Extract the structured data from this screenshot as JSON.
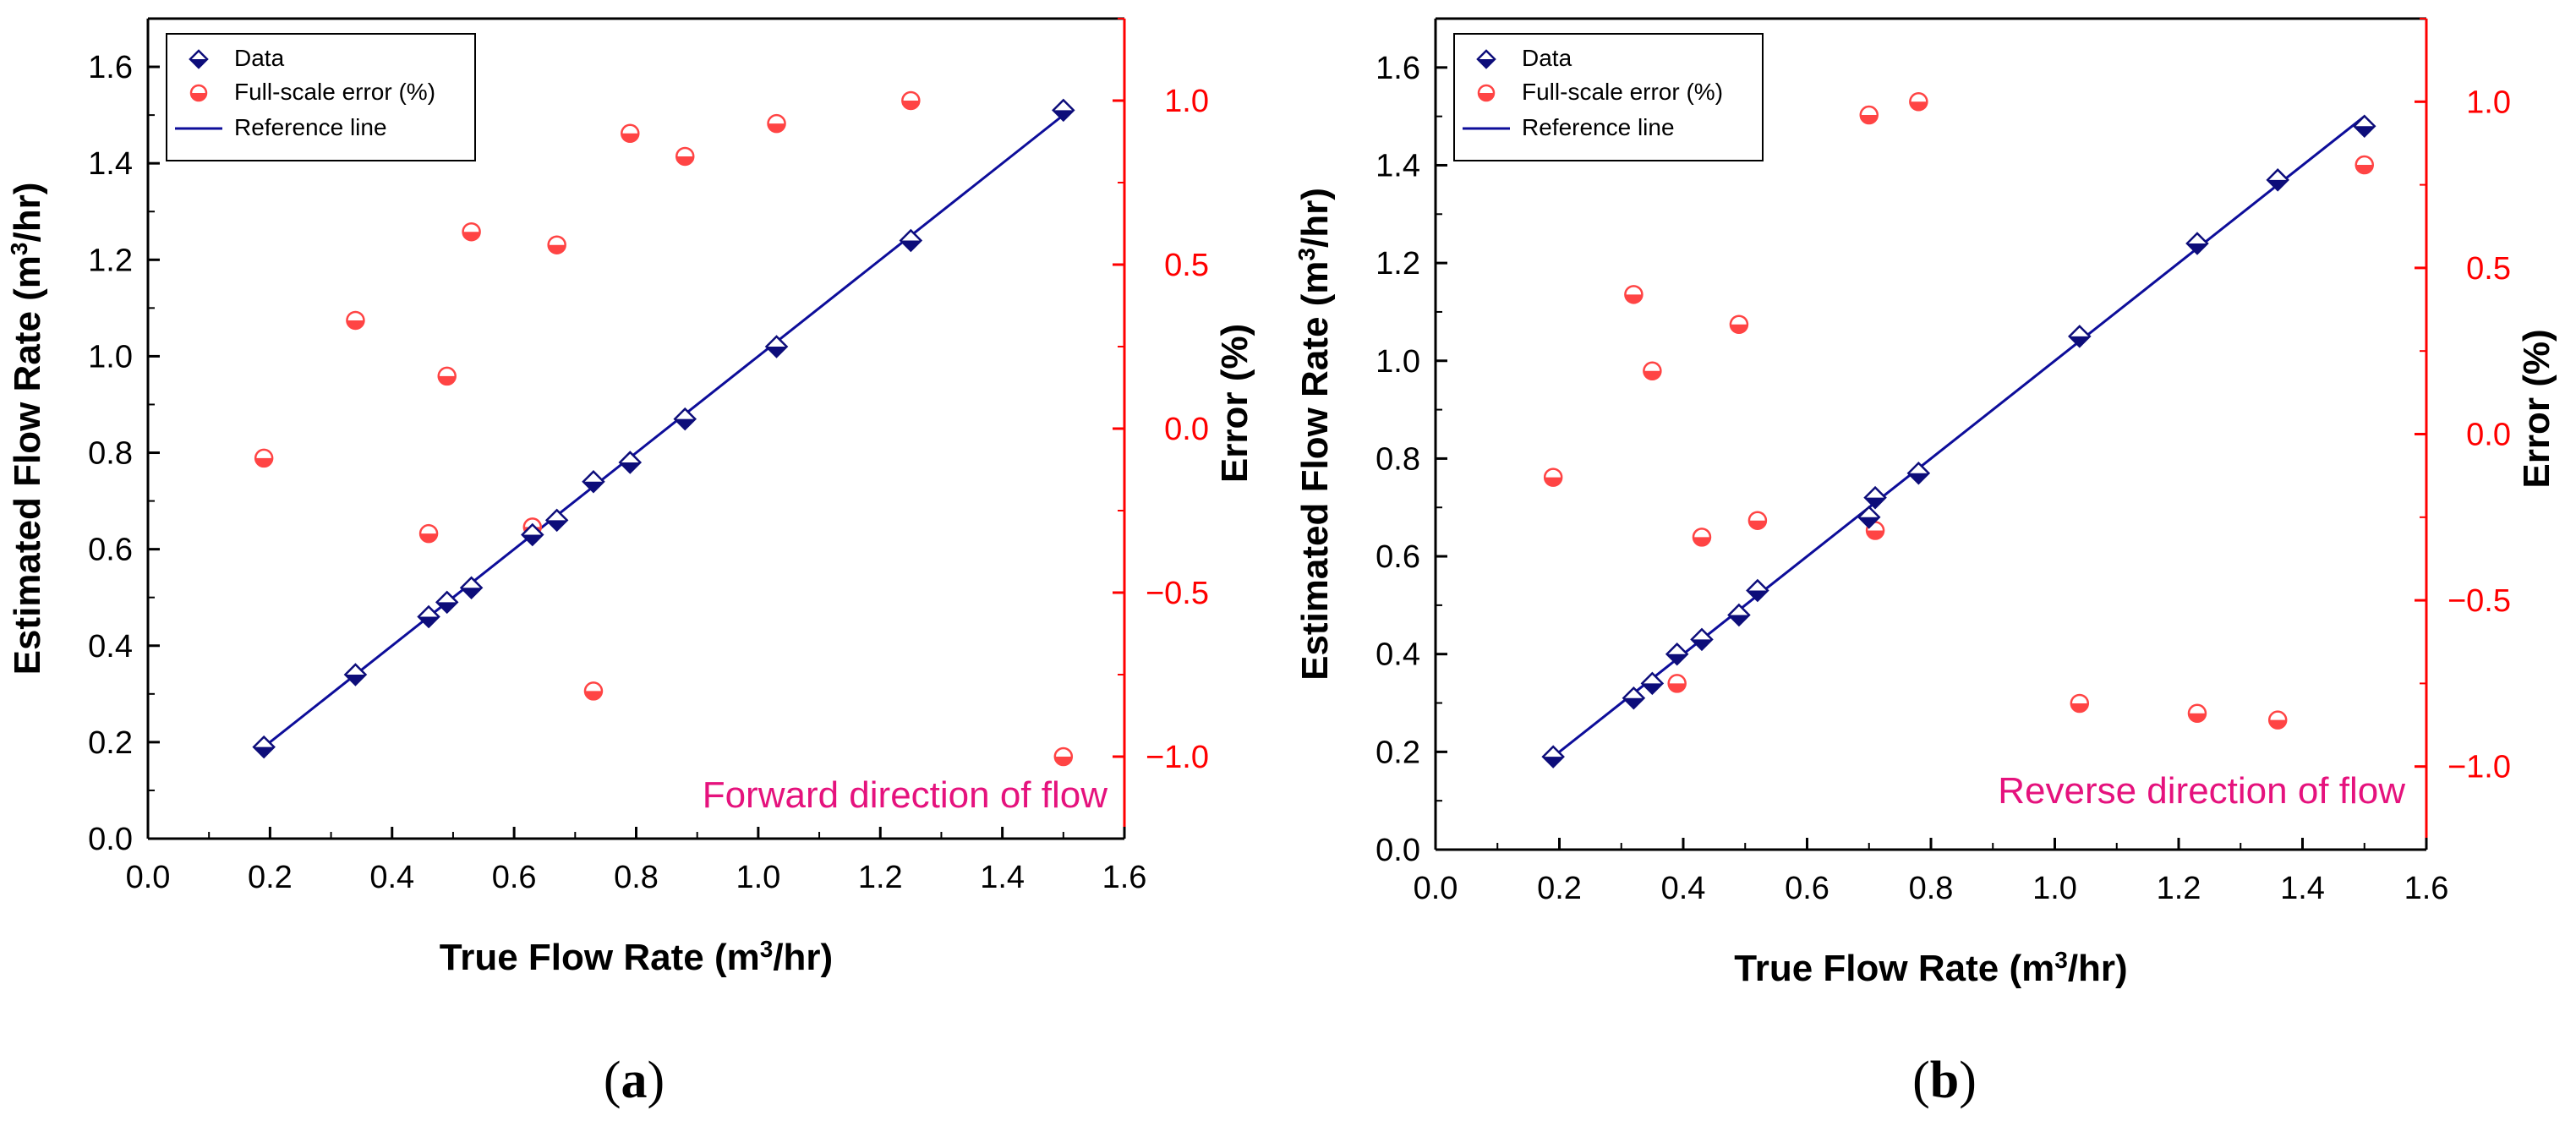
{
  "chart_data": [
    {
      "type": "scatter",
      "panel_label": "a",
      "annotation": "Forward direction of flow",
      "xlabel": "True Flow Rate (m3/hr)",
      "ylabel": "Estimated Flow Rate (m3/hr)",
      "y2label": "Error (%)",
      "xlim": [
        0.0,
        1.6
      ],
      "ylim": [
        0.0,
        1.7
      ],
      "y2lim": [
        -1.25,
        1.25
      ],
      "xticks": [
        "0.0",
        "0.2",
        "0.4",
        "0.6",
        "0.8",
        "1.0",
        "1.2",
        "1.4",
        "1.6"
      ],
      "yticks": [
        "0.0",
        "0.2",
        "0.4",
        "0.6",
        "0.8",
        "1.0",
        "1.2",
        "1.4",
        "1.6"
      ],
      "y2ticks": [
        "−1.0",
        "−0.5",
        "0.0",
        "0.5",
        "1.0"
      ],
      "legend": [
        "Data",
        "Full-scale error (%)",
        "Reference line"
      ],
      "series": [
        {
          "name": "Data",
          "axis": "left",
          "color": "#0d0d7a",
          "x": [
            0.19,
            0.34,
            0.46,
            0.49,
            0.53,
            0.63,
            0.67,
            0.73,
            0.79,
            0.88,
            1.03,
            1.25,
            1.5
          ],
          "y": [
            0.19,
            0.34,
            0.46,
            0.49,
            0.52,
            0.63,
            0.66,
            0.74,
            0.78,
            0.87,
            1.02,
            1.24,
            1.51
          ]
        },
        {
          "name": "Full-scale error (%)",
          "axis": "right",
          "color": "#ff4444",
          "x": [
            0.19,
            0.34,
            0.46,
            0.49,
            0.53,
            0.63,
            0.67,
            0.73,
            0.79,
            0.88,
            1.03,
            1.25,
            1.5
          ],
          "y": [
            -0.09,
            0.33,
            -0.32,
            0.16,
            0.6,
            -0.3,
            0.56,
            -0.8,
            0.9,
            0.83,
            0.93,
            1.0,
            -1.0
          ]
        },
        {
          "name": "Reference line",
          "axis": "left",
          "color": "#0d0d9a",
          "x": [
            0.19,
            1.5
          ],
          "y": [
            0.19,
            1.5
          ]
        }
      ]
    },
    {
      "type": "scatter",
      "panel_label": "b",
      "annotation": "Reverse direction of flow",
      "xlabel": "True Flow Rate (m3/hr)",
      "ylabel": "Estimated Flow Rate (m3/hr)",
      "y2label": "Error (%)",
      "xlim": [
        0.0,
        1.6
      ],
      "ylim": [
        0.0,
        1.7
      ],
      "y2lim": [
        -1.25,
        1.25
      ],
      "xticks": [
        "0.0",
        "0.2",
        "0.4",
        "0.6",
        "0.8",
        "1.0",
        "1.2",
        "1.4",
        "1.6"
      ],
      "yticks": [
        "0.0",
        "0.2",
        "0.4",
        "0.6",
        "0.8",
        "1.0",
        "1.2",
        "1.4",
        "1.6"
      ],
      "y2ticks": [
        "−1.0",
        "−0.5",
        "0.0",
        "0.5",
        "1.0"
      ],
      "legend": [
        "Data",
        "Full-scale error (%)",
        "Reference line"
      ],
      "series": [
        {
          "name": "Data",
          "axis": "left",
          "color": "#0d0d7a",
          "x": [
            0.19,
            0.32,
            0.35,
            0.39,
            0.43,
            0.49,
            0.52,
            0.7,
            0.71,
            0.78,
            1.04,
            1.23,
            1.36,
            1.5
          ],
          "y": [
            0.19,
            0.31,
            0.34,
            0.4,
            0.43,
            0.48,
            0.53,
            0.68,
            0.72,
            0.77,
            1.05,
            1.24,
            1.37,
            1.48
          ]
        },
        {
          "name": "Full-scale error (%)",
          "axis": "right",
          "color": "#ff4444",
          "x": [
            0.19,
            0.32,
            0.35,
            0.39,
            0.43,
            0.49,
            0.52,
            0.7,
            0.71,
            0.78,
            1.04,
            1.23,
            1.36,
            1.5
          ],
          "y": [
            -0.13,
            0.42,
            0.19,
            -0.75,
            -0.31,
            0.33,
            -0.26,
            0.96,
            -0.29,
            1.0,
            -0.81,
            -0.84,
            -0.86,
            0.81
          ]
        },
        {
          "name": "Reference line",
          "axis": "left",
          "color": "#0d0d9a",
          "x": [
            0.19,
            1.5
          ],
          "y": [
            0.19,
            1.5
          ]
        }
      ]
    }
  ],
  "captions": [
    "(a)",
    "(b)"
  ]
}
